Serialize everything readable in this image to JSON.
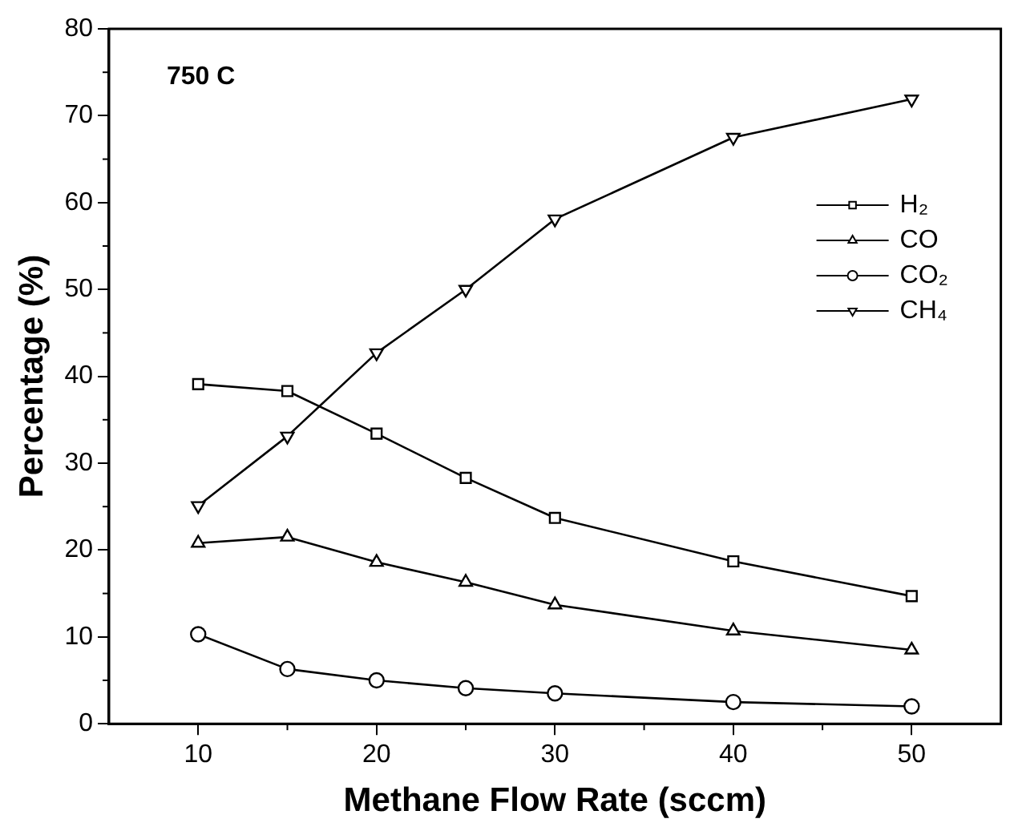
{
  "chart_data": {
    "type": "line",
    "xlabel": "Methane Flow Rate (sccm)",
    "ylabel": "Percentage (%)",
    "annotations": [
      "750 C"
    ],
    "x": [
      10,
      15,
      20,
      25,
      30,
      40,
      50
    ],
    "series": [
      {
        "name": "H₂",
        "color": "#000000",
        "marker": "square",
        "values": [
          39.1,
          38.3,
          33.4,
          28.3,
          23.7,
          18.7,
          14.7
        ]
      },
      {
        "name": "CO",
        "color": "#000000",
        "marker": "triangle",
        "values": [
          20.8,
          21.5,
          18.6,
          16.3,
          13.7,
          10.7,
          8.5
        ]
      },
      {
        "name": "CO₂",
        "color": "#000000",
        "marker": "circle",
        "values": [
          10.3,
          6.3,
          5.0,
          4.1,
          3.5,
          2.5,
          2.0
        ]
      },
      {
        "name": "CH₄",
        "color": "#000000",
        "marker": "triangle-down",
        "values": [
          25.1,
          33.1,
          42.7,
          50.0,
          58.1,
          67.5,
          71.9
        ]
      }
    ],
    "xlim": [
      5,
      55
    ],
    "xticks": [
      10,
      20,
      30,
      40,
      50
    ],
    "ylim": [
      0,
      80
    ],
    "yticks": [
      0,
      10,
      20,
      30,
      40,
      50,
      60,
      70,
      80
    ],
    "grid": false,
    "legend": "top right",
    "line_style": "solid"
  }
}
